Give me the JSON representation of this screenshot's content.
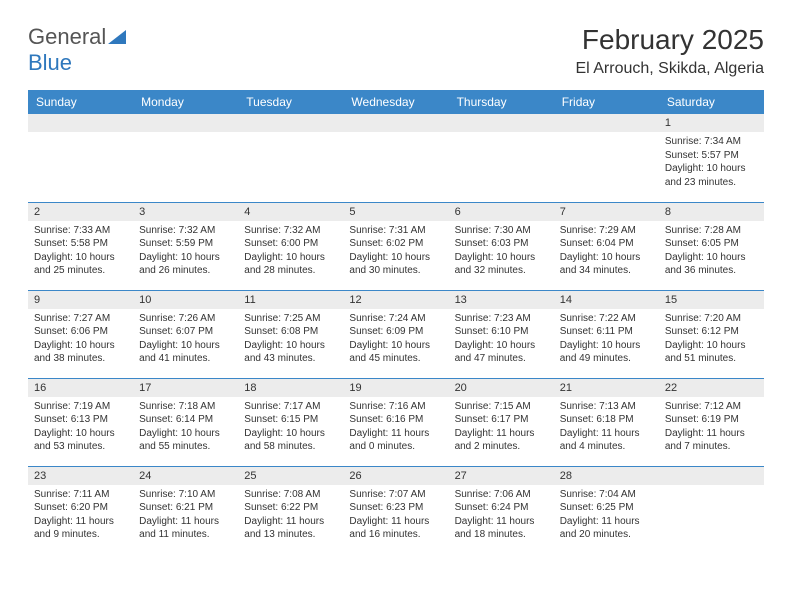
{
  "logo": {
    "text1": "General",
    "text2": "Blue",
    "color1": "#555555",
    "color2": "#2f78bd"
  },
  "title": "February 2025",
  "location": "El Arrouch, Skikda, Algeria",
  "colors": {
    "header_bg": "#3b87c8",
    "header_text": "#ffffff",
    "daynum_bg": "#ececec",
    "border": "#3b87c8",
    "text": "#333333"
  },
  "day_headers": [
    "Sunday",
    "Monday",
    "Tuesday",
    "Wednesday",
    "Thursday",
    "Friday",
    "Saturday"
  ],
  "weeks": [
    [
      null,
      null,
      null,
      null,
      null,
      null,
      {
        "n": "1",
        "sunrise": "7:34 AM",
        "sunset": "5:57 PM",
        "daylight": "10 hours and 23 minutes."
      }
    ],
    [
      {
        "n": "2",
        "sunrise": "7:33 AM",
        "sunset": "5:58 PM",
        "daylight": "10 hours and 25 minutes."
      },
      {
        "n": "3",
        "sunrise": "7:32 AM",
        "sunset": "5:59 PM",
        "daylight": "10 hours and 26 minutes."
      },
      {
        "n": "4",
        "sunrise": "7:32 AM",
        "sunset": "6:00 PM",
        "daylight": "10 hours and 28 minutes."
      },
      {
        "n": "5",
        "sunrise": "7:31 AM",
        "sunset": "6:02 PM",
        "daylight": "10 hours and 30 minutes."
      },
      {
        "n": "6",
        "sunrise": "7:30 AM",
        "sunset": "6:03 PM",
        "daylight": "10 hours and 32 minutes."
      },
      {
        "n": "7",
        "sunrise": "7:29 AM",
        "sunset": "6:04 PM",
        "daylight": "10 hours and 34 minutes."
      },
      {
        "n": "8",
        "sunrise": "7:28 AM",
        "sunset": "6:05 PM",
        "daylight": "10 hours and 36 minutes."
      }
    ],
    [
      {
        "n": "9",
        "sunrise": "7:27 AM",
        "sunset": "6:06 PM",
        "daylight": "10 hours and 38 minutes."
      },
      {
        "n": "10",
        "sunrise": "7:26 AM",
        "sunset": "6:07 PM",
        "daylight": "10 hours and 41 minutes."
      },
      {
        "n": "11",
        "sunrise": "7:25 AM",
        "sunset": "6:08 PM",
        "daylight": "10 hours and 43 minutes."
      },
      {
        "n": "12",
        "sunrise": "7:24 AM",
        "sunset": "6:09 PM",
        "daylight": "10 hours and 45 minutes."
      },
      {
        "n": "13",
        "sunrise": "7:23 AM",
        "sunset": "6:10 PM",
        "daylight": "10 hours and 47 minutes."
      },
      {
        "n": "14",
        "sunrise": "7:22 AM",
        "sunset": "6:11 PM",
        "daylight": "10 hours and 49 minutes."
      },
      {
        "n": "15",
        "sunrise": "7:20 AM",
        "sunset": "6:12 PM",
        "daylight": "10 hours and 51 minutes."
      }
    ],
    [
      {
        "n": "16",
        "sunrise": "7:19 AM",
        "sunset": "6:13 PM",
        "daylight": "10 hours and 53 minutes."
      },
      {
        "n": "17",
        "sunrise": "7:18 AM",
        "sunset": "6:14 PM",
        "daylight": "10 hours and 55 minutes."
      },
      {
        "n": "18",
        "sunrise": "7:17 AM",
        "sunset": "6:15 PM",
        "daylight": "10 hours and 58 minutes."
      },
      {
        "n": "19",
        "sunrise": "7:16 AM",
        "sunset": "6:16 PM",
        "daylight": "11 hours and 0 minutes."
      },
      {
        "n": "20",
        "sunrise": "7:15 AM",
        "sunset": "6:17 PM",
        "daylight": "11 hours and 2 minutes."
      },
      {
        "n": "21",
        "sunrise": "7:13 AM",
        "sunset": "6:18 PM",
        "daylight": "11 hours and 4 minutes."
      },
      {
        "n": "22",
        "sunrise": "7:12 AM",
        "sunset": "6:19 PM",
        "daylight": "11 hours and 7 minutes."
      }
    ],
    [
      {
        "n": "23",
        "sunrise": "7:11 AM",
        "sunset": "6:20 PM",
        "daylight": "11 hours and 9 minutes."
      },
      {
        "n": "24",
        "sunrise": "7:10 AM",
        "sunset": "6:21 PM",
        "daylight": "11 hours and 11 minutes."
      },
      {
        "n": "25",
        "sunrise": "7:08 AM",
        "sunset": "6:22 PM",
        "daylight": "11 hours and 13 minutes."
      },
      {
        "n": "26",
        "sunrise": "7:07 AM",
        "sunset": "6:23 PM",
        "daylight": "11 hours and 16 minutes."
      },
      {
        "n": "27",
        "sunrise": "7:06 AM",
        "sunset": "6:24 PM",
        "daylight": "11 hours and 18 minutes."
      },
      {
        "n": "28",
        "sunrise": "7:04 AM",
        "sunset": "6:25 PM",
        "daylight": "11 hours and 20 minutes."
      },
      null
    ]
  ],
  "labels": {
    "sunrise": "Sunrise:",
    "sunset": "Sunset:",
    "daylight": "Daylight:"
  }
}
